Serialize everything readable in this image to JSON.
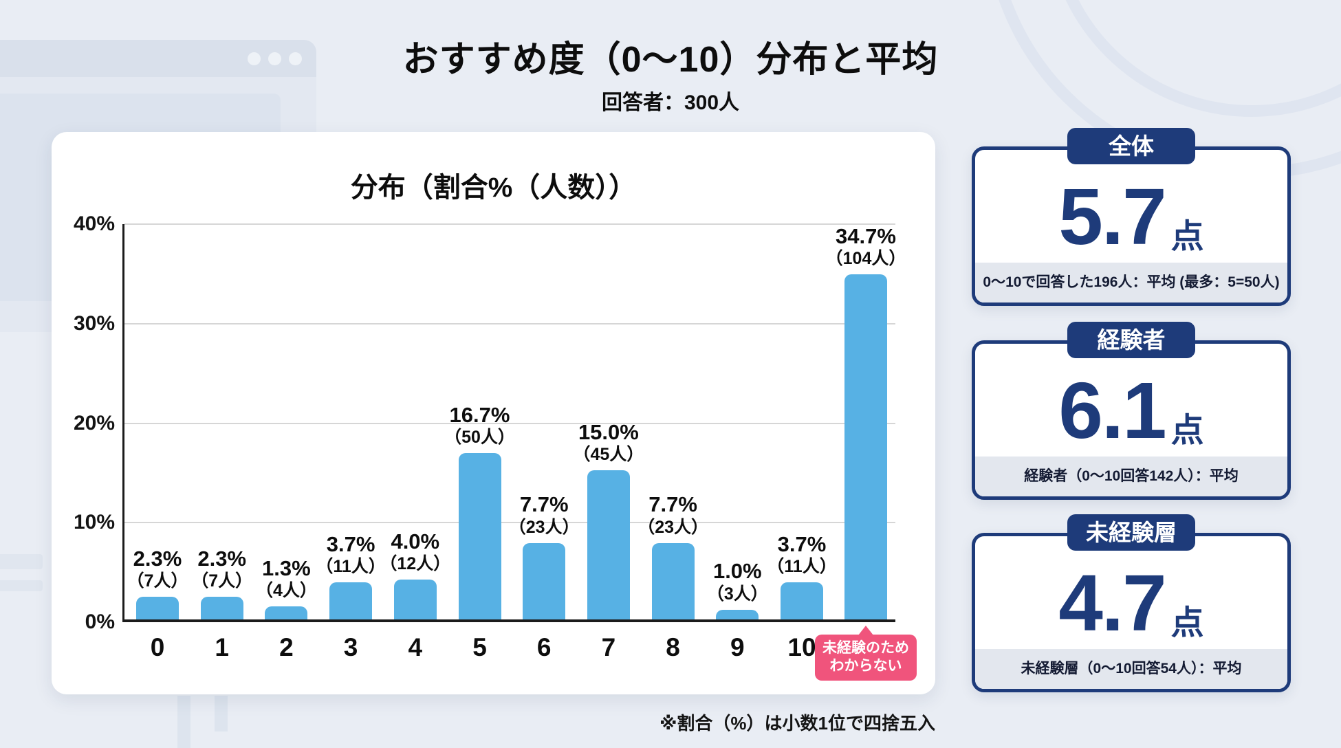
{
  "page": {
    "title": "おすすめ度（0〜10）分布と平均",
    "subtitle": "回答者：300人",
    "footnote": "※割合（%）は小数1位で四捨五入"
  },
  "chart_data": {
    "type": "bar",
    "title": "分布（割合%（人数））",
    "categories": [
      "0",
      "1",
      "2",
      "3",
      "4",
      "5",
      "6",
      "7",
      "8",
      "9",
      "10",
      "未経験のためわからない"
    ],
    "values": [
      2.3,
      2.3,
      1.3,
      3.7,
      4.0,
      16.7,
      7.7,
      15.0,
      7.7,
      1.0,
      3.7,
      34.7
    ],
    "counts": [
      7,
      7,
      4,
      11,
      12,
      50,
      23,
      45,
      23,
      3,
      11,
      104
    ],
    "percent_labels": [
      "2.3%",
      "2.3%",
      "1.3%",
      "3.7%",
      "4.0%",
      "16.7%",
      "7.7%",
      "15.0%",
      "7.7%",
      "1.0%",
      "3.7%",
      "34.7%"
    ],
    "count_labels": [
      "（7人）",
      "（7人）",
      "（4人）",
      "（11人）",
      "（12人）",
      "（50人）",
      "（23人）",
      "（45人）",
      "（23人）",
      "（3人）",
      "（11人）",
      "（104人）"
    ],
    "y_ticks": [
      "0%",
      "10%",
      "20%",
      "30%",
      "40%"
    ],
    "y_tick_values": [
      0,
      10,
      20,
      30,
      40
    ],
    "ylim": [
      0,
      40
    ],
    "grid": true,
    "legend": null,
    "no_answer_bubble": {
      "index": 11,
      "lines": [
        "未経験のため",
        "わからない"
      ]
    }
  },
  "summary_panels": [
    {
      "badge": "全体",
      "value": "5.7",
      "unit": "点",
      "footer": "0〜10で回答した196人：平均 (最多：5=50人)"
    },
    {
      "badge": "経験者",
      "value": "6.1",
      "unit": "点",
      "footer": "経験者（0〜10回答142人）：平均"
    },
    {
      "badge": "未経験層",
      "value": "4.7",
      "unit": "点",
      "footer": "未経験層（0〜10回答54人）：平均"
    }
  ],
  "colors": {
    "background": "#e9edf4",
    "card": "#ffffff",
    "bar": "#57b1e4",
    "navy": "#1e3b7a",
    "pink": "#f0547c",
    "gridline": "#d6d6d6",
    "axis": "#1b1b1b",
    "footer_band": "#e3e7ee"
  }
}
